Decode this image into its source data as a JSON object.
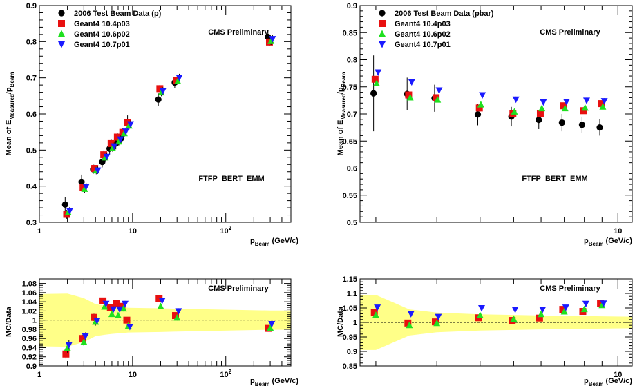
{
  "chart_data": [
    {
      "type": "scatter",
      "id": "top-left",
      "xscale": "log",
      "xlim": [
        1,
        500
      ],
      "ylim": [
        0.3,
        0.9
      ],
      "xlabel": "p",
      "xlabel_sub": "Beam",
      "xlabel_unit": "(GeV/c)",
      "ylabel": "Mean of E",
      "ylabel_sub1": "Measured",
      "ylabel_mid": "/p",
      "ylabel_sub2": "Beam",
      "xticks": [
        {
          "v": 1,
          "t": "1"
        },
        {
          "v": 10,
          "t": "10"
        },
        {
          "v": 100,
          "t": "10",
          "sup": "2"
        }
      ],
      "yticks": [
        0.3,
        0.4,
        0.5,
        0.6,
        0.7,
        0.8,
        0.9
      ],
      "ytick_labels": [
        "0.3",
        "0.4",
        "0.5",
        "0.6",
        "0.7",
        "0.8",
        "0.9"
      ],
      "annotations": {
        "prelim": "CMS Preliminary",
        "physlist": "FTFP_BERT_EMM"
      },
      "series": [
        {
          "name": "2006 Test Beam Data (p)",
          "marker": "circle",
          "color": "#000000",
          "x": [
            2,
            3,
            4,
            5,
            6,
            7,
            8,
            20,
            30,
            300
          ],
          "y": [
            0.349,
            0.412,
            0.447,
            0.467,
            0.504,
            0.518,
            0.533,
            0.64,
            0.687,
            0.813
          ],
          "err": [
            0.021,
            0.02,
            0.013,
            0.015,
            0.016,
            0.016,
            0.013,
            0.017,
            0.015,
            0.02
          ]
        },
        {
          "name": "Geant4 10.4p03",
          "marker": "square",
          "color": "#e81010",
          "x": [
            2,
            3,
            4,
            5,
            6,
            7,
            8,
            9,
            20,
            30,
            300
          ],
          "y": [
            0.322,
            0.397,
            0.449,
            0.487,
            0.518,
            0.536,
            0.549,
            0.576,
            0.67,
            0.693,
            0.799
          ],
          "err": [
            0.012,
            0.01,
            0.01,
            0.012,
            0.012,
            0.012,
            0.012,
            0.02,
            0.01,
            0.01,
            0.01
          ]
        },
        {
          "name": "Geant4 10.6p02",
          "marker": "triangle-up",
          "color": "#1fe01f",
          "x": [
            2,
            3,
            4,
            5,
            6,
            7,
            8,
            9,
            20,
            30,
            300
          ],
          "y": [
            0.327,
            0.392,
            0.443,
            0.479,
            0.505,
            0.523,
            0.546,
            0.567,
            0.659,
            0.69,
            0.801
          ],
          "err": [
            0.01,
            0.01,
            0.01,
            0.01,
            0.01,
            0.01,
            0.01,
            0.01,
            0.01,
            0.01,
            0.01
          ]
        },
        {
          "name": "Geant4 10.7p01",
          "marker": "triangle-down",
          "color": "#1a1aff",
          "x": [
            2,
            3,
            4,
            5,
            6,
            7,
            8,
            9,
            20,
            30,
            300
          ],
          "y": [
            0.332,
            0.399,
            0.444,
            0.482,
            0.511,
            0.53,
            0.552,
            0.572,
            0.664,
            0.701,
            0.808
          ],
          "err": [
            0.01,
            0.01,
            0.01,
            0.01,
            0.01,
            0.01,
            0.01,
            0.01,
            0.01,
            0.01,
            0.01
          ]
        }
      ]
    },
    {
      "type": "scatter",
      "id": "top-right",
      "xscale": "log",
      "xlim": [
        1.8,
        11
      ],
      "ylim": [
        0.5,
        0.9
      ],
      "xlabel": "p",
      "xlabel_sub": "Beam",
      "xlabel_unit": "(GeV/c)",
      "ylabel": "Mean of E",
      "ylabel_sub1": "Measured",
      "ylabel_mid": "/p",
      "ylabel_sub2": "Beam",
      "xticks": [
        {
          "v": 10,
          "t": "10"
        }
      ],
      "yticks": [
        0.5,
        0.55,
        0.6,
        0.65,
        0.7,
        0.75,
        0.8,
        0.85,
        0.9
      ],
      "ytick_labels": [
        "0.5",
        "0.55",
        "0.6",
        "0.65",
        "0.7",
        "0.75",
        "0.8",
        "0.85",
        "0.9"
      ],
      "annotations": {
        "prelim": "CMS Preliminary",
        "physlist": "FTFP_BERT_EMM"
      },
      "series": [
        {
          "name": "2006 Test Beam Data (pbar)",
          "marker": "circle",
          "color": "#000000",
          "x": [
            2,
            2.5,
            3,
            4,
            5,
            6,
            7,
            8,
            9
          ],
          "y": [
            0.738,
            0.737,
            0.729,
            0.699,
            0.695,
            0.689,
            0.684,
            0.68,
            0.675
          ],
          "err": [
            0.07,
            0.03,
            0.025,
            0.02,
            0.018,
            0.017,
            0.016,
            0.015,
            0.015
          ]
        },
        {
          "name": "Geant4 10.4p03",
          "marker": "square",
          "color": "#e81010",
          "x": [
            2,
            2.5,
            3,
            4,
            5,
            6,
            7,
            8,
            9
          ],
          "y": [
            0.764,
            0.735,
            0.73,
            0.711,
            0.701,
            0.7,
            0.715,
            0.706,
            0.719
          ],
          "err": [
            0.005,
            0.005,
            0.005,
            0.005,
            0.005,
            0.005,
            0.005,
            0.005,
            0.005
          ]
        },
        {
          "name": "Geant4 10.6p02",
          "marker": "triangle-up",
          "color": "#1fe01f",
          "x": [
            2,
            2.5,
            3,
            4,
            5,
            6,
            7,
            8,
            9
          ],
          "y": [
            0.756,
            0.73,
            0.726,
            0.717,
            0.704,
            0.71,
            0.71,
            0.711,
            0.713
          ],
          "err": [
            0.005,
            0.005,
            0.005,
            0.005,
            0.005,
            0.005,
            0.005,
            0.005,
            0.005
          ]
        },
        {
          "name": "Geant4 10.7p01",
          "marker": "triangle-down",
          "color": "#1a1aff",
          "x": [
            2,
            2.5,
            3,
            4,
            5,
            6,
            7,
            8,
            9
          ],
          "y": [
            0.777,
            0.759,
            0.744,
            0.735,
            0.727,
            0.722,
            0.723,
            0.725,
            0.724
          ],
          "err": [
            0.005,
            0.005,
            0.005,
            0.005,
            0.005,
            0.005,
            0.005,
            0.005,
            0.005
          ]
        }
      ]
    },
    {
      "type": "scatter",
      "id": "bottom-left",
      "xscale": "log",
      "xlim": [
        1,
        500
      ],
      "ylim": [
        0.9,
        1.09
      ],
      "xlabel": "p",
      "xlabel_sub": "Beam",
      "xlabel_unit": "(GeV/c)",
      "ylabel": "MC/Data",
      "xticks": [
        {
          "v": 1,
          "t": "1"
        },
        {
          "v": 10,
          "t": "10"
        },
        {
          "v": 100,
          "t": "10",
          "sup": "2"
        }
      ],
      "yticks": [
        0.9,
        0.92,
        0.94,
        0.96,
        0.98,
        1.0,
        1.02,
        1.04,
        1.06,
        1.08
      ],
      "ytick_labels": [
        "0.9",
        "0.92",
        "0.94",
        "0.96",
        "0.98",
        "1",
        "1.02",
        "1.04",
        "1.06",
        "1.08"
      ],
      "annotations": {
        "prelim": "CMS Preliminary"
      },
      "reference_line": 1.0,
      "band": {
        "color": "#ffff88",
        "x": [
          1,
          2,
          3,
          4,
          5,
          6,
          7,
          8,
          9,
          20,
          30,
          300,
          500
        ],
        "lo": [
          0.943,
          0.942,
          0.952,
          0.965,
          0.968,
          0.97,
          0.971,
          0.972,
          0.973,
          0.974,
          0.975,
          0.979,
          0.979
        ],
        "hi": [
          1.057,
          1.058,
          1.048,
          1.035,
          1.032,
          1.03,
          1.029,
          1.028,
          1.027,
          1.026,
          1.025,
          1.021,
          1.021
        ]
      },
      "series": [
        {
          "name": "Geant4 10.4p03",
          "marker": "square",
          "color": "#e81010",
          "x": [
            2,
            3,
            4,
            5,
            6,
            7,
            8,
            9,
            20,
            30,
            300
          ],
          "y": [
            0.926,
            0.96,
            1.006,
            1.042,
            1.027,
            1.036,
            1.03,
            1.0,
            1.047,
            1.01,
            0.982
          ],
          "err": [
            0.01,
            0.008,
            0.008,
            0.006,
            0.006,
            0.006,
            0.006,
            0.006,
            0.006,
            0.006,
            0.006
          ]
        },
        {
          "name": "Geant4 10.6p02",
          "marker": "triangle-up",
          "color": "#1fe01f",
          "x": [
            2,
            3,
            4,
            5,
            6,
            7,
            8,
            9,
            20,
            30,
            300
          ],
          "y": [
            0.939,
            0.952,
            0.996,
            1.029,
            1.013,
            1.01,
            1.025,
            0.987,
            1.03,
            1.005,
            0.983
          ],
          "err": [
            0.01,
            0.008,
            0.008,
            0.006,
            0.006,
            0.006,
            0.006,
            0.006,
            0.006,
            0.006,
            0.006
          ]
        },
        {
          "name": "Geant4 10.7p01",
          "marker": "triangle-down",
          "color": "#1a1aff",
          "x": [
            2,
            3,
            4,
            5,
            6,
            7,
            8,
            9,
            20,
            30,
            300
          ],
          "y": [
            0.946,
            0.965,
            0.999,
            1.036,
            1.024,
            1.024,
            1.036,
            0.986,
            1.043,
            1.02,
            0.992
          ],
          "err": [
            0.01,
            0.008,
            0.008,
            0.006,
            0.006,
            0.006,
            0.006,
            0.006,
            0.006,
            0.006,
            0.006
          ]
        }
      ]
    },
    {
      "type": "scatter",
      "id": "bottom-right",
      "xscale": "log",
      "xlim": [
        1.8,
        11
      ],
      "ylim": [
        0.85,
        1.15
      ],
      "xlabel": "p",
      "xlabel_sub": "Beam",
      "xlabel_unit": "(GeV/c)",
      "ylabel": "MC/Data",
      "xticks": [
        {
          "v": 10,
          "t": "10"
        }
      ],
      "yticks": [
        0.85,
        0.9,
        0.95,
        1.0,
        1.05,
        1.1,
        1.15
      ],
      "ytick_labels": [
        "0.85",
        "0.9",
        "0.95",
        "1",
        "1.05",
        "1.1",
        "1.15"
      ],
      "annotations": {
        "prelim": "CMS Preliminary"
      },
      "reference_line": 1.0,
      "band": {
        "color": "#ffff88",
        "x": [
          1.8,
          2,
          2.5,
          3,
          4,
          5,
          6,
          7,
          8,
          9,
          11
        ],
        "lo": [
          0.905,
          0.905,
          0.955,
          0.966,
          0.972,
          0.974,
          0.976,
          0.977,
          0.978,
          0.979,
          0.98
        ],
        "hi": [
          1.095,
          1.095,
          1.045,
          1.034,
          1.028,
          1.026,
          1.024,
          1.023,
          1.022,
          1.021,
          1.02
        ]
      },
      "series": [
        {
          "name": "Geant4 10.4p03",
          "marker": "square",
          "color": "#e81010",
          "x": [
            2,
            2.5,
            3,
            4,
            5,
            6,
            7,
            8,
            9
          ],
          "y": [
            1.035,
            0.998,
            1.002,
            1.016,
            1.007,
            1.015,
            1.045,
            1.038,
            1.065
          ],
          "err": [
            0.006,
            0.006,
            0.006,
            0.006,
            0.006,
            0.006,
            0.006,
            0.006,
            0.006
          ]
        },
        {
          "name": "Geant4 10.6p02",
          "marker": "triangle-up",
          "color": "#1fe01f",
          "x": [
            2,
            2.5,
            3,
            4,
            5,
            6,
            7,
            8,
            9
          ],
          "y": [
            1.025,
            0.99,
            0.997,
            1.024,
            1.012,
            1.028,
            1.037,
            1.045,
            1.059
          ],
          "err": [
            0.006,
            0.006,
            0.006,
            0.006,
            0.006,
            0.006,
            0.006,
            0.006,
            0.006
          ]
        },
        {
          "name": "Geant4 10.7p01",
          "marker": "triangle-down",
          "color": "#1a1aff",
          "x": [
            2,
            2.5,
            3,
            4,
            5,
            6,
            7,
            8,
            9
          ],
          "y": [
            1.052,
            1.03,
            1.02,
            1.05,
            1.045,
            1.045,
            1.052,
            1.065,
            1.066
          ],
          "err": [
            0.006,
            0.006,
            0.006,
            0.006,
            0.006,
            0.006,
            0.006,
            0.006,
            0.006
          ]
        }
      ]
    }
  ]
}
